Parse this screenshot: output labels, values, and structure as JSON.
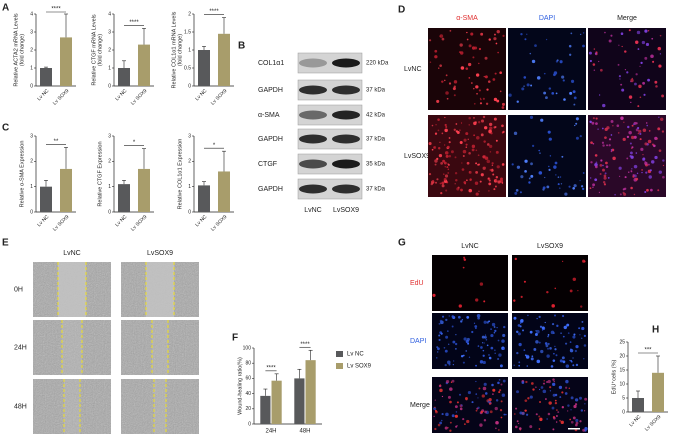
{
  "panel_labels": [
    "A",
    "B",
    "C",
    "D",
    "E",
    "F",
    "G",
    "H"
  ],
  "blot": {
    "columns": [
      "LvNC",
      "LvSOX9"
    ],
    "rows": [
      {
        "protein": "COL1α1",
        "size": "220 kDa"
      },
      {
        "protein": "GAPDH",
        "size": "37 kDa"
      },
      {
        "protein": "α-SMA",
        "size": "42 kDa"
      },
      {
        "protein": "GAPDH",
        "size": "37 kDa"
      },
      {
        "protein": "CTGF",
        "size": "35 kDa"
      },
      {
        "protein": "GAPDH",
        "size": "37 kDa"
      }
    ]
  },
  "immunofluorescence": {
    "channels": [
      "α-SMA",
      "DAPI",
      "Merge"
    ],
    "groups": [
      "LvNC",
      "LvSOX9"
    ]
  },
  "wound_healing": {
    "groups": [
      "LvNC",
      "LvSOX9"
    ],
    "times": [
      "0H",
      "24H",
      "48H"
    ]
  },
  "edu": {
    "groups": [
      "LvNC",
      "LvSOX9"
    ],
    "channels": [
      "EdU",
      "DAPI",
      "Merge"
    ]
  },
  "chart_data": [
    {
      "type": "bar",
      "ylabel": [
        "Relative ACTA2 mRNA Levels",
        "(fold change)"
      ],
      "categories": [
        "Lv NC",
        "Lv SOX9"
      ],
      "values": [
        1.0,
        2.7
      ],
      "errors": [
        0.05,
        1.3
      ],
      "colors": [
        "#58595b",
        "#a89d6b"
      ],
      "ylim": [
        0,
        4
      ],
      "yticks": [
        0,
        1,
        2,
        3,
        4
      ],
      "significance": "****"
    },
    {
      "type": "bar",
      "ylabel": [
        "Relative CTGF mRNA Levels",
        "(fold change)"
      ],
      "categories": [
        "Lv NC",
        "Lv SOX9"
      ],
      "values": [
        1.0,
        2.3
      ],
      "errors": [
        0.4,
        0.9
      ],
      "colors": [
        "#58595b",
        "#a89d6b"
      ],
      "ylim": [
        0,
        4
      ],
      "yticks": [
        0,
        1,
        2,
        3,
        4
      ],
      "significance": "****"
    },
    {
      "type": "bar",
      "ylabel": [
        "Relative COL1α1 mRNA Levels",
        "(fold change)"
      ],
      "categories": [
        "Lv NC",
        "Lv SOX9"
      ],
      "values": [
        1.0,
        1.45
      ],
      "errors": [
        0.1,
        0.45
      ],
      "colors": [
        "#58595b",
        "#a89d6b"
      ],
      "ylim": [
        0,
        2
      ],
      "yticks": [
        0,
        0.5,
        1,
        1.5,
        2
      ],
      "significance": "****"
    },
    {
      "type": "bar",
      "ylabel": [
        "Relative α-SMA Expression"
      ],
      "categories": [
        "Lv NC",
        "Lv SOX9"
      ],
      "values": [
        1.0,
        1.7
      ],
      "errors": [
        0.25,
        0.85
      ],
      "colors": [
        "#58595b",
        "#a89d6b"
      ],
      "ylim": [
        0,
        3
      ],
      "yticks": [
        0,
        1,
        2,
        3
      ],
      "significance": "**"
    },
    {
      "type": "bar",
      "ylabel": [
        "Relative CTGF Expression"
      ],
      "categories": [
        "Lv NC",
        "Lv SOX9"
      ],
      "values": [
        1.1,
        1.7
      ],
      "errors": [
        0.15,
        0.8
      ],
      "colors": [
        "#58595b",
        "#a89d6b"
      ],
      "ylim": [
        0,
        3
      ],
      "yticks": [
        0,
        1,
        2,
        3
      ],
      "significance": "*"
    },
    {
      "type": "bar",
      "ylabel": [
        "Relative COL1α1 Expression"
      ],
      "categories": [
        "Lv NC",
        "Lv SOX9"
      ],
      "values": [
        1.05,
        1.6
      ],
      "errors": [
        0.15,
        0.8
      ],
      "colors": [
        "#58595b",
        "#a89d6b"
      ],
      "ylim": [
        0,
        3
      ],
      "yticks": [
        0,
        1,
        2,
        3
      ],
      "significance": "*"
    },
    {
      "type": "grouped_bar",
      "ylabel": [
        "Wound-healing ratio(%)"
      ],
      "categories": [
        "24H",
        "48H"
      ],
      "series": [
        {
          "name": "Lv NC",
          "color": "#58595b",
          "values": [
            37,
            60
          ],
          "errors": [
            9,
            12
          ]
        },
        {
          "name": "Lv SOX9",
          "color": "#a89d6b",
          "values": [
            57,
            84
          ],
          "errors": [
            9,
            13
          ]
        }
      ],
      "ylim": [
        0,
        100
      ],
      "yticks": [
        0,
        20,
        40,
        60,
        80,
        100
      ],
      "significance": [
        "****",
        "****"
      ],
      "legend": "right"
    },
    {
      "type": "bar",
      "ylabel": [
        "EdU⁺cells (%)"
      ],
      "categories": [
        "Lv NC",
        "Lv SOX9"
      ],
      "values": [
        5,
        14
      ],
      "errors": [
        2.5,
        6
      ],
      "colors": [
        "#58595b",
        "#a89d6b"
      ],
      "ylim": [
        0,
        25
      ],
      "yticks": [
        0,
        5,
        10,
        15,
        20,
        25
      ],
      "significance": "***"
    }
  ]
}
